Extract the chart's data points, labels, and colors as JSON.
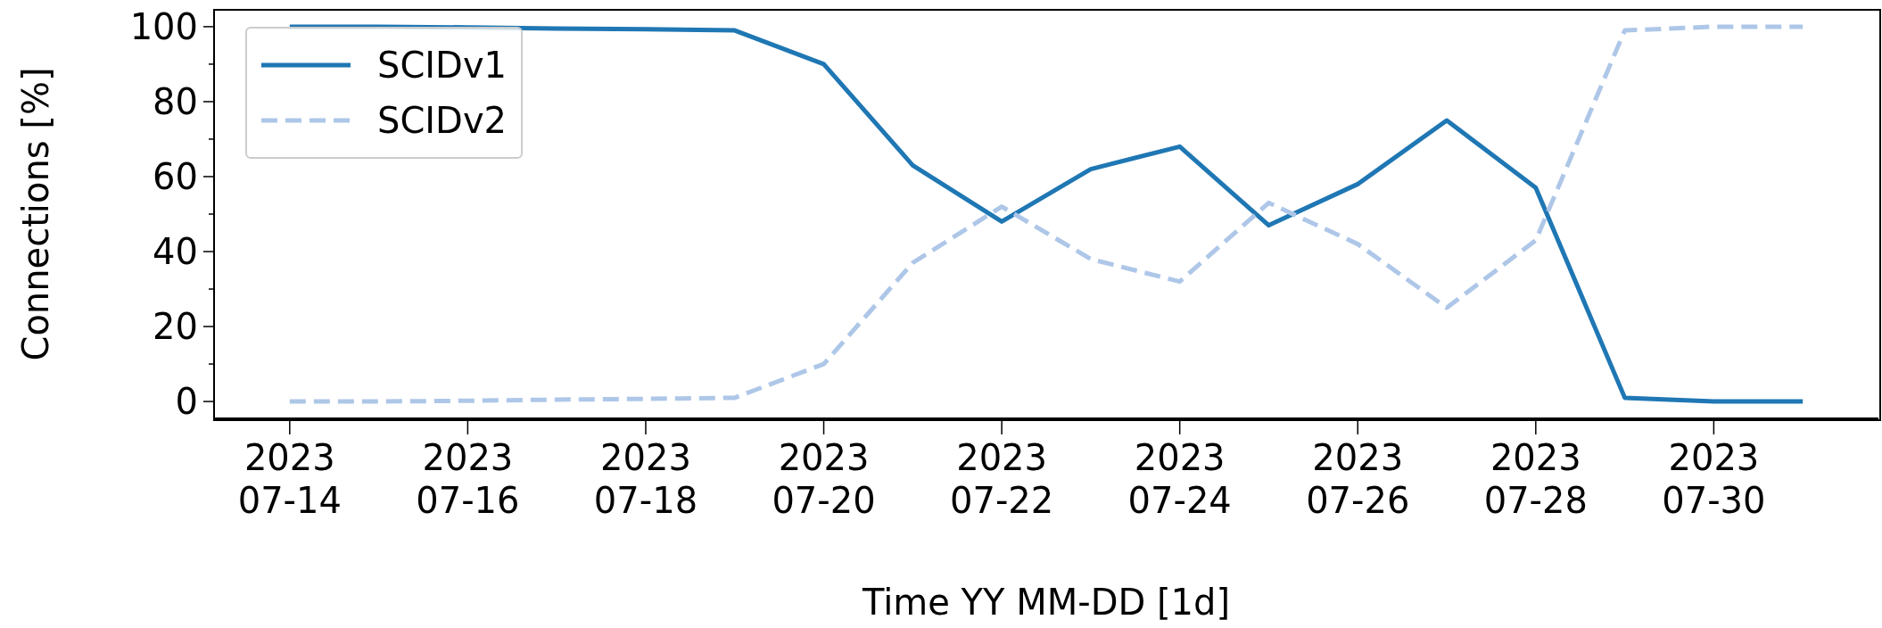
{
  "chart_data": {
    "type": "line",
    "xlabel": "Time YY MM-DD [1d]",
    "ylabel": "Connections [%]",
    "x": [
      "2023-07-14",
      "2023-07-15",
      "2023-07-16",
      "2023-07-17",
      "2023-07-18",
      "2023-07-19",
      "2023-07-20",
      "2023-07-21",
      "2023-07-22",
      "2023-07-23",
      "2023-07-24",
      "2023-07-25",
      "2023-07-26",
      "2023-07-27",
      "2023-07-28",
      "2023-07-29",
      "2023-07-30",
      "2023-07-31"
    ],
    "series": [
      {
        "name": "SCIDv1",
        "color": "#1f77b4",
        "line_style": "solid",
        "values": [
          100,
          100,
          99.8,
          99.5,
          99.3,
          99,
          90,
          63,
          48,
          62,
          68,
          47,
          58,
          75,
          57,
          1,
          0,
          0
        ]
      },
      {
        "name": "SCIDv2",
        "color": "#aec7e8",
        "line_style": "dashed",
        "values": [
          0,
          0,
          0.2,
          0.5,
          0.7,
          1,
          10,
          37,
          52,
          38,
          32,
          53,
          42,
          25,
          43,
          99,
          100,
          100
        ]
      }
    ],
    "xlim": [
      "2023-07-13T03:36",
      "2023-07-31T20:24"
    ],
    "xticks": [
      {
        "value": "2023-07-14",
        "label": "2023\n07-14"
      },
      {
        "value": "2023-07-16",
        "label": "2023\n07-16"
      },
      {
        "value": "2023-07-18",
        "label": "2023\n07-18"
      },
      {
        "value": "2023-07-20",
        "label": "2023\n07-20"
      },
      {
        "value": "2023-07-22",
        "label": "2023\n07-22"
      },
      {
        "value": "2023-07-24",
        "label": "2023\n07-24"
      },
      {
        "value": "2023-07-26",
        "label": "2023\n07-26"
      },
      {
        "value": "2023-07-28",
        "label": "2023\n07-28"
      },
      {
        "value": "2023-07-30",
        "label": "2023\n07-30"
      }
    ],
    "ylim": [
      -4.5,
      104.5
    ],
    "yticks": [
      0,
      {
        "value": 10,
        "label": null
      },
      20,
      {
        "value": 30,
        "label": null
      },
      40,
      {
        "value": 50,
        "label": null
      },
      60,
      {
        "value": 70,
        "label": null
      },
      80,
      {
        "value": 90,
        "label": null
      },
      100
    ],
    "grid": false,
    "legend": "top left",
    "marker": "none"
  }
}
